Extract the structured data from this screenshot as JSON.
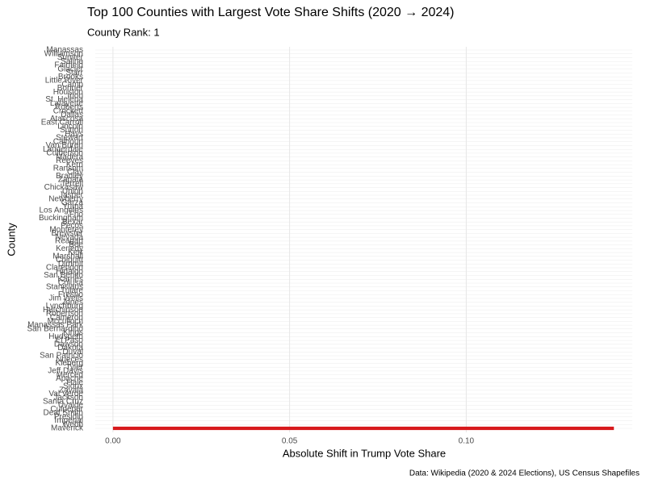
{
  "chart_data": {
    "type": "bar",
    "orientation": "horizontal",
    "title": "Top 100 Counties with Largest Vote Share Shifts (2020 → 2024)",
    "subtitle": "County Rank: 1",
    "x_label": "Absolute Shift in Trump Vote Share",
    "y_label": "County",
    "caption": "Data: Wikipedia (2020 & 2024 Elections), US Census Shapefiles",
    "categories": [
      "Manassas",
      "Williamson",
      "Sumter",
      "Saline",
      "Fairfield",
      "Glacier",
      "Starr",
      "Brooks",
      "Little River",
      "Camp",
      "Bonner",
      "Houston",
      "Irion",
      "St. Helena",
      "Lafayette",
      "Roberts",
      "Crockett",
      "Dallas",
      "Atascosa",
      "East Carroll",
      "Lincoln",
      "Sutton",
      "Hays",
      "Stewart",
      "Calhoun",
      "Van Buren",
      "Lauderdale",
      "Culberson",
      "Madera",
      "Reeves",
      "Kern",
      "Ransom",
      "Clay",
      "Bradley",
      "Zapata",
      "Terrell",
      "Chickasaw",
      "Union",
      "Jasper",
      "Newberry",
      "Garza",
      "Yuma",
      "Los Angeles",
      "Frio",
      "Buckingham",
      "Bexar",
      "Pecos",
      "Monterey",
      "Brewster",
      "Nevada",
      "Reagan",
      "Bee",
      "Kenedy",
      "Kerr",
      "Marshall",
      "Colquitt",
      "Dimmit",
      "Clarendon",
      "Hidalgo",
      "San Benito",
      "Karnes",
      "Colusa",
      "Stanislaus",
      "Tulare",
      "Fresno",
      "Jim Wells",
      "Jones",
      "Lynchburg",
      "Hutchinson",
      "Robertson",
      "Cameron",
      "Mcculloch",
      "Manassas Park",
      "San Bernardino",
      "Kings",
      "Hudspeth",
      "El Paso",
      "Dawson",
      "Dakota",
      "Duval",
      "San Patricio",
      "Nueces",
      "Kleberg",
      "Tyler",
      "Jeff Davis",
      "Merced",
      "Apache",
      "Hale",
      "Sioux",
      "Zavala",
      "Val Verde",
      "Jackson",
      "Santa Cruz",
      "Uvalde",
      "Culpeper",
      "Deaf Smith",
      "Presidio",
      "Imperial",
      "Webb",
      "Maverick"
    ],
    "values": [
      null,
      null,
      null,
      null,
      null,
      null,
      null,
      null,
      null,
      null,
      null,
      null,
      null,
      null,
      null,
      null,
      null,
      null,
      null,
      null,
      null,
      null,
      null,
      null,
      null,
      null,
      null,
      null,
      null,
      null,
      null,
      null,
      null,
      null,
      null,
      null,
      null,
      null,
      null,
      null,
      null,
      null,
      null,
      null,
      null,
      null,
      null,
      null,
      null,
      null,
      null,
      null,
      null,
      null,
      null,
      null,
      null,
      null,
      null,
      null,
      null,
      null,
      null,
      null,
      null,
      null,
      null,
      null,
      null,
      null,
      null,
      null,
      null,
      null,
      null,
      null,
      null,
      null,
      null,
      null,
      null,
      null,
      null,
      null,
      null,
      null,
      null,
      null,
      null,
      null,
      null,
      null,
      null,
      null,
      null,
      null,
      null,
      null,
      null,
      0.1418
    ],
    "color": "#d7191c",
    "xlim": [
      -0.005,
      0.147
    ],
    "xticks": [
      {
        "value": 0,
        "label": "0.00"
      },
      0.05,
      {
        "value": 0.1,
        "label": "0.10"
      }
    ],
    "grid": true
  }
}
